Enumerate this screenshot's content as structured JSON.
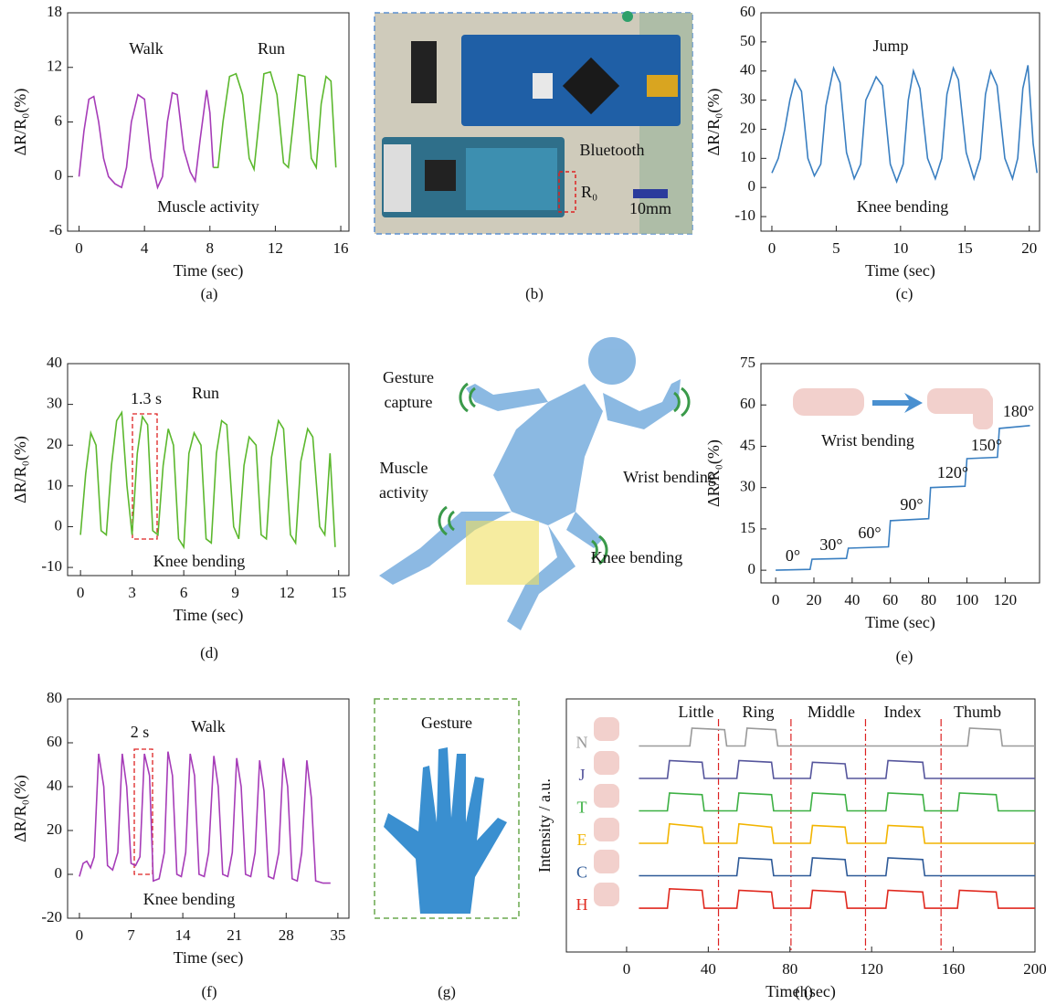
{
  "chart_data": [
    {
      "type": "line",
      "caption": "(a)",
      "xlabel": "Time (sec)",
      "ylabel": "ΔR/R₀(%)",
      "xlim": [
        -0.7,
        16.5
      ],
      "xticks": [
        0,
        4,
        8,
        12,
        16
      ],
      "ylim": [
        -6,
        18
      ],
      "yticks": [
        -6,
        0,
        6,
        12,
        18
      ],
      "annotations": [
        "Walk",
        "Run",
        "Muscle activity"
      ],
      "series": [
        {
          "color": "#a63cb8",
          "x": [
            0,
            0.3,
            0.6,
            0.9,
            1.2,
            1.5,
            1.8,
            2.2,
            2.6,
            2.9,
            3.2,
            3.6,
            4.0,
            4.4,
            4.8,
            5.1,
            5.4,
            5.7,
            6.0,
            6.4,
            6.8,
            7.1,
            7.4,
            7.8,
            8.0,
            8.2
          ],
          "values": [
            0,
            5,
            8.5,
            8.8,
            6,
            2,
            0,
            -0.8,
            -1.2,
            1,
            6,
            9,
            8.5,
            2,
            -1.2,
            0,
            6,
            9.2,
            9,
            3,
            0.5,
            -0.5,
            4,
            9.5,
            7,
            1
          ]
        },
        {
          "color": "#5cb82e",
          "x": [
            8.2,
            8.5,
            8.8,
            9.2,
            9.6,
            10.0,
            10.4,
            10.7,
            11.0,
            11.3,
            11.7,
            12.1,
            12.5,
            12.8,
            13.1,
            13.4,
            13.8,
            14.2,
            14.5,
            14.8,
            15.1,
            15.4,
            15.7
          ],
          "values": [
            1,
            1,
            6,
            11,
            11.3,
            9,
            2,
            0.8,
            6,
            11.3,
            11.5,
            9,
            1.5,
            1,
            6,
            11.2,
            11,
            2,
            1,
            8,
            11,
            10.5,
            1
          ]
        }
      ]
    },
    {
      "type": "line",
      "caption": "(c)",
      "xlabel": "Time (sec)",
      "ylabel": "ΔR/R₀(%)",
      "xlim": [
        -0.85,
        20.8
      ],
      "xticks": [
        0,
        5,
        10,
        15,
        20
      ],
      "ylim": [
        -15,
        60
      ],
      "yticks": [
        -10,
        0,
        10,
        20,
        30,
        40,
        50,
        60
      ],
      "annotations": [
        "Jump",
        "Knee bending"
      ],
      "series": [
        {
          "color": "#3a7fc1",
          "x": [
            0,
            0.5,
            1,
            1.4,
            1.8,
            2.3,
            2.8,
            3.3,
            3.8,
            4.2,
            4.8,
            5.3,
            5.8,
            6.4,
            6.9,
            7.3,
            7.7,
            8.1,
            8.6,
            9.2,
            9.7,
            10.2,
            10.6,
            11.0,
            11.5,
            12.1,
            12.7,
            13.2,
            13.6,
            14.1,
            14.5,
            15.1,
            15.7,
            16.2,
            16.6,
            17.0,
            17.5,
            18.1,
            18.7,
            19.1,
            19.5,
            19.9,
            20.3,
            20.6
          ],
          "values": [
            5,
            10,
            20,
            30,
            37,
            33,
            10,
            4,
            8,
            28,
            41,
            36,
            12,
            3,
            8,
            30,
            34,
            38,
            35,
            8,
            2,
            8,
            30,
            40,
            34,
            10,
            3,
            10,
            32,
            41,
            37,
            12,
            3,
            10,
            32,
            40,
            35,
            10,
            3,
            10,
            34,
            42,
            15,
            5
          ]
        }
      ]
    },
    {
      "type": "line",
      "caption": "(d)",
      "xlabel": "Time (sec)",
      "ylabel": "ΔR/R₀(%)",
      "xlim": [
        -0.75,
        15.6
      ],
      "xticks": [
        0,
        3,
        6,
        9,
        12,
        15
      ],
      "ylim": [
        -12,
        40
      ],
      "yticks": [
        -10,
        0,
        10,
        20,
        30,
        40
      ],
      "annotations": [
        "Run",
        "1.3 s",
        "Knee bending"
      ],
      "series": [
        {
          "color": "#5cb82e",
          "x": [
            0,
            0.3,
            0.6,
            0.9,
            1.2,
            1.5,
            1.8,
            2.1,
            2.4,
            2.7,
            3.0,
            3.3,
            3.6,
            3.9,
            4.2,
            4.5,
            4.8,
            5.1,
            5.4,
            5.7,
            6.0,
            6.3,
            6.6,
            7.0,
            7.3,
            7.6,
            7.9,
            8.2,
            8.5,
            8.9,
            9.2,
            9.5,
            9.8,
            10.2,
            10.5,
            10.8,
            11.1,
            11.5,
            11.8,
            12.2,
            12.5,
            12.8,
            13.2,
            13.5,
            13.9,
            14.2,
            14.5,
            14.8
          ],
          "values": [
            -2,
            13,
            23,
            20,
            -1,
            -2,
            15,
            26,
            28,
            10,
            -2,
            18,
            27,
            25,
            -1,
            -2,
            15,
            24,
            20,
            -3,
            -5,
            18,
            23,
            20,
            -3,
            -4,
            18,
            26,
            25,
            0,
            -3,
            15,
            22,
            20,
            -2,
            -3,
            17,
            26,
            24,
            -2,
            -4,
            16,
            24,
            22,
            0,
            -2,
            18,
            -5
          ]
        }
      ]
    },
    {
      "type": "line",
      "caption": "(e)",
      "xlabel": "Time (sec)",
      "ylabel": "ΔR/R₀(%)",
      "xlim": [
        -7.7,
        138
      ],
      "xticks": [
        0,
        20,
        40,
        60,
        80,
        100,
        120
      ],
      "ylim": [
        -4.6,
        75
      ],
      "yticks": [
        0,
        15,
        30,
        45,
        60,
        75
      ],
      "annotations": [
        "0°",
        "30°",
        "60°",
        "90°",
        "120°",
        "150°",
        "180°",
        "Wrist bending"
      ],
      "series": [
        {
          "color": "#3a7fc1",
          "x": [
            0,
            18,
            19,
            37,
            38,
            59,
            60,
            80,
            81,
            99,
            100,
            116,
            117,
            133
          ],
          "values": [
            0,
            0.3,
            4,
            4.3,
            8,
            8.5,
            18,
            18.7,
            30,
            30.5,
            40.5,
            41,
            51.5,
            52.5
          ]
        }
      ]
    },
    {
      "type": "line",
      "caption": "(f)",
      "xlabel": "Time (sec)",
      "ylabel": "ΔR/R₀(%)",
      "xlim": [
        -1.6,
        36.5
      ],
      "xticks": [
        0,
        7,
        14,
        21,
        28,
        35
      ],
      "ylim": [
        -20,
        80
      ],
      "yticks": [
        -20,
        0,
        20,
        40,
        60,
        80
      ],
      "annotations": [
        "Walk",
        "2 s",
        "Knee bending"
      ],
      "series": [
        {
          "color": "#a63cb8",
          "x": [
            0,
            0.5,
            1,
            1.5,
            2,
            2.6,
            3.3,
            3.8,
            4.5,
            5.2,
            5.8,
            6.4,
            7,
            7.6,
            8.2,
            8.8,
            9.5,
            10,
            10.8,
            11.5,
            12,
            12.6,
            13.2,
            13.8,
            14.4,
            15,
            15.6,
            16.2,
            16.9,
            17.5,
            18.2,
            18.8,
            19.4,
            20.1,
            20.7,
            21.3,
            21.9,
            22.5,
            23.2,
            23.8,
            24.4,
            25,
            25.6,
            26.3,
            27,
            27.6,
            28.2,
            28.8,
            29.5,
            30.1,
            30.8,
            31.4,
            32,
            33,
            34
          ],
          "values": [
            -1,
            5,
            6,
            3,
            8,
            55,
            40,
            4,
            2,
            10,
            55,
            40,
            5,
            4,
            8,
            55,
            45,
            -3,
            -2,
            10,
            56,
            45,
            0,
            -1,
            10,
            55,
            45,
            0,
            -1,
            10,
            54,
            40,
            0,
            -1,
            10,
            53,
            40,
            0,
            -1,
            10,
            52,
            38,
            -1,
            -2,
            10,
            53,
            40,
            -2,
            -3,
            10,
            52,
            35,
            -3,
            -4,
            -4
          ]
        }
      ]
    },
    {
      "type": "line",
      "caption": "(h)",
      "xlabel": "Time (sec)",
      "ylabel": "Intensity / a.u.",
      "xlim": [
        -29.5,
        200
      ],
      "xticks": [
        0,
        40,
        80,
        120,
        160,
        200
      ],
      "ylim": [
        -1.35,
        6.45
      ],
      "annotations": [
        "Little",
        "Ring",
        "Middle",
        "Index",
        "Thumb"
      ],
      "dividers": [
        45,
        80.5,
        117,
        154
      ],
      "series": [
        {
          "name": "N",
          "color": "#9a9a9a",
          "x": [
            6,
            31,
            32,
            48,
            49,
            58,
            59,
            73,
            74,
            167,
            168,
            183,
            184,
            200
          ],
          "values": [
            5,
            5,
            5.55,
            5.5,
            5,
            5,
            5.55,
            5.5,
            5,
            5,
            5.55,
            5.5,
            5,
            5
          ]
        },
        {
          "name": "J",
          "color": "#55559c",
          "x": [
            6,
            20,
            21,
            37,
            38,
            54,
            55,
            71,
            72,
            90,
            91,
            107,
            108,
            127,
            128,
            145,
            146,
            200
          ],
          "values": [
            4,
            4,
            4.55,
            4.5,
            4,
            4,
            4.55,
            4.5,
            4,
            4,
            4.5,
            4.45,
            4,
            4,
            4.55,
            4.5,
            4,
            4
          ]
        },
        {
          "name": "T",
          "color": "#3cb043",
          "x": [
            6,
            20,
            21,
            37,
            38,
            54,
            55,
            71,
            72,
            90,
            91,
            107,
            108,
            127,
            128,
            145,
            146,
            162,
            163,
            181,
            182,
            200
          ],
          "values": [
            3,
            3,
            3.55,
            3.5,
            3,
            3,
            3.55,
            3.5,
            3,
            3,
            3.55,
            3.5,
            3,
            3,
            3.55,
            3.5,
            3,
            3,
            3.55,
            3.5,
            3,
            3
          ]
        },
        {
          "name": "E",
          "color": "#f2b400",
          "x": [
            6,
            20,
            21,
            37,
            38,
            54,
            55,
            71,
            72,
            90,
            91,
            107,
            108,
            127,
            128,
            145,
            146,
            200
          ],
          "values": [
            2,
            2,
            2.6,
            2.5,
            2,
            2,
            2.6,
            2.5,
            2,
            2,
            2.55,
            2.5,
            2,
            2,
            2.55,
            2.5,
            2,
            2
          ]
        },
        {
          "name": "C",
          "color": "#2e5a98",
          "x": [
            6,
            54,
            55,
            71,
            72,
            90,
            91,
            107,
            108,
            127,
            128,
            145,
            146,
            200
          ],
          "values": [
            1,
            1,
            1.55,
            1.5,
            1,
            1,
            1.55,
            1.5,
            1,
            1,
            1.55,
            1.5,
            1,
            1
          ]
        },
        {
          "name": "H",
          "color": "#e0281e",
          "x": [
            6,
            20,
            21,
            37,
            38,
            54,
            55,
            71,
            72,
            90,
            91,
            107,
            108,
            127,
            128,
            145,
            146,
            162,
            163,
            181,
            182,
            200
          ],
          "values": [
            0,
            0,
            0.6,
            0.55,
            0,
            0,
            0.55,
            0.5,
            0,
            0,
            0.55,
            0.5,
            0,
            0,
            0.55,
            0.5,
            0,
            0,
            0.55,
            0.5,
            0,
            0
          ]
        }
      ]
    }
  ],
  "panel_b": {
    "caption": "(b)",
    "labels": [
      "Bluetooth",
      "R₀",
      "10mm"
    ]
  },
  "runner": {
    "labels": [
      "Gesture capture",
      "Muscle activity",
      "Wrist bending",
      "Knee bending"
    ]
  },
  "panel_g": {
    "caption": "(g)",
    "label": "Gesture"
  }
}
